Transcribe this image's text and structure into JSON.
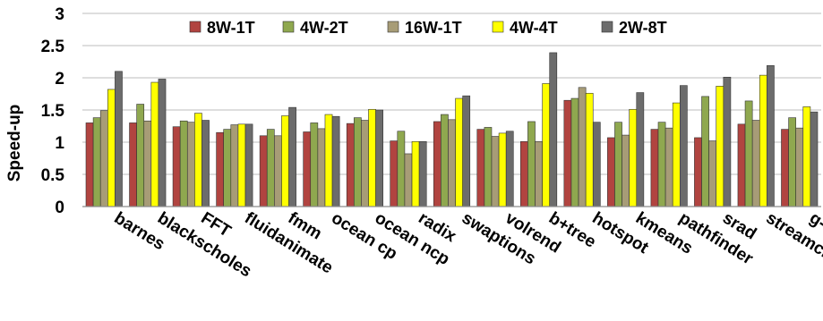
{
  "chart_data": {
    "type": "bar",
    "ylabel": "Speed-up",
    "xlabel": "",
    "ylim": [
      0,
      3
    ],
    "yticks": [
      "0",
      "0.5",
      "1",
      "1.5",
      "2",
      "2.5",
      "3"
    ],
    "grid": "horizontal",
    "legend_position": "top",
    "categories": [
      "barnes",
      "blackscholes",
      "FFT",
      "fluidanimate",
      "fmm",
      "ocean cp",
      "ocean ncp",
      "radix",
      "swaptions",
      "volrend",
      "b+tree",
      "hotspot",
      "kmeans",
      "pathfinder",
      "srad",
      "streamcluster",
      "g-mean"
    ],
    "series": [
      {
        "name": "8W-1T",
        "color": "#b14440",
        "values": [
          1.3,
          1.3,
          1.24,
          1.15,
          1.1,
          1.16,
          1.29,
          1.02,
          1.32,
          1.2,
          1.01,
          1.65,
          1.07,
          1.2,
          1.07,
          1.28,
          1.2
        ]
      },
      {
        "name": "4W-2T",
        "color": "#8fa84f",
        "values": [
          1.38,
          1.59,
          1.33,
          1.2,
          1.2,
          1.3,
          1.38,
          1.17,
          1.43,
          1.23,
          1.32,
          1.68,
          1.31,
          1.31,
          1.71,
          1.64,
          1.38
        ]
      },
      {
        "name": "16W-1T",
        "color": "#a79c77",
        "values": [
          1.49,
          1.33,
          1.31,
          1.27,
          1.1,
          1.21,
          1.34,
          0.82,
          1.35,
          1.09,
          1.01,
          1.85,
          1.11,
          1.22,
          1.02,
          1.34,
          1.22
        ]
      },
      {
        "name": "4W-4T",
        "color": "#ffff00",
        "values": [
          1.82,
          1.93,
          1.45,
          1.28,
          1.41,
          1.43,
          1.51,
          1.01,
          1.68,
          1.14,
          1.91,
          1.76,
          1.51,
          1.61,
          1.87,
          2.04,
          1.55
        ]
      },
      {
        "name": "2W-8T",
        "color": "#6c6c6c",
        "values": [
          2.1,
          1.98,
          1.34,
          1.28,
          1.54,
          1.4,
          1.5,
          1.01,
          1.72,
          1.17,
          2.39,
          1.31,
          1.77,
          1.88,
          2.01,
          2.19,
          1.47
        ]
      }
    ]
  }
}
